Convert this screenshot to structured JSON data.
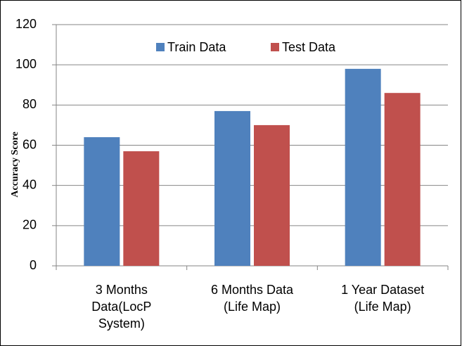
{
  "chart_data": {
    "type": "bar",
    "y_axis_label": "Accuracy Score",
    "categories": [
      "3 Months\nData(LocP\nSystem)",
      "6 Months Data\n(Life Map)",
      "1 Year Dataset\n(Life Map)"
    ],
    "series": [
      {
        "name": "Train Data",
        "color": "#4f81bd",
        "values": [
          64,
          77,
          98
        ]
      },
      {
        "name": "Test Data",
        "color": "#c0504d",
        "values": [
          57,
          70,
          86
        ]
      }
    ],
    "ylim": [
      0,
      120
    ],
    "yticks": [
      0,
      20,
      40,
      60,
      80,
      100,
      120
    ],
    "grid": true,
    "legend": "top"
  }
}
